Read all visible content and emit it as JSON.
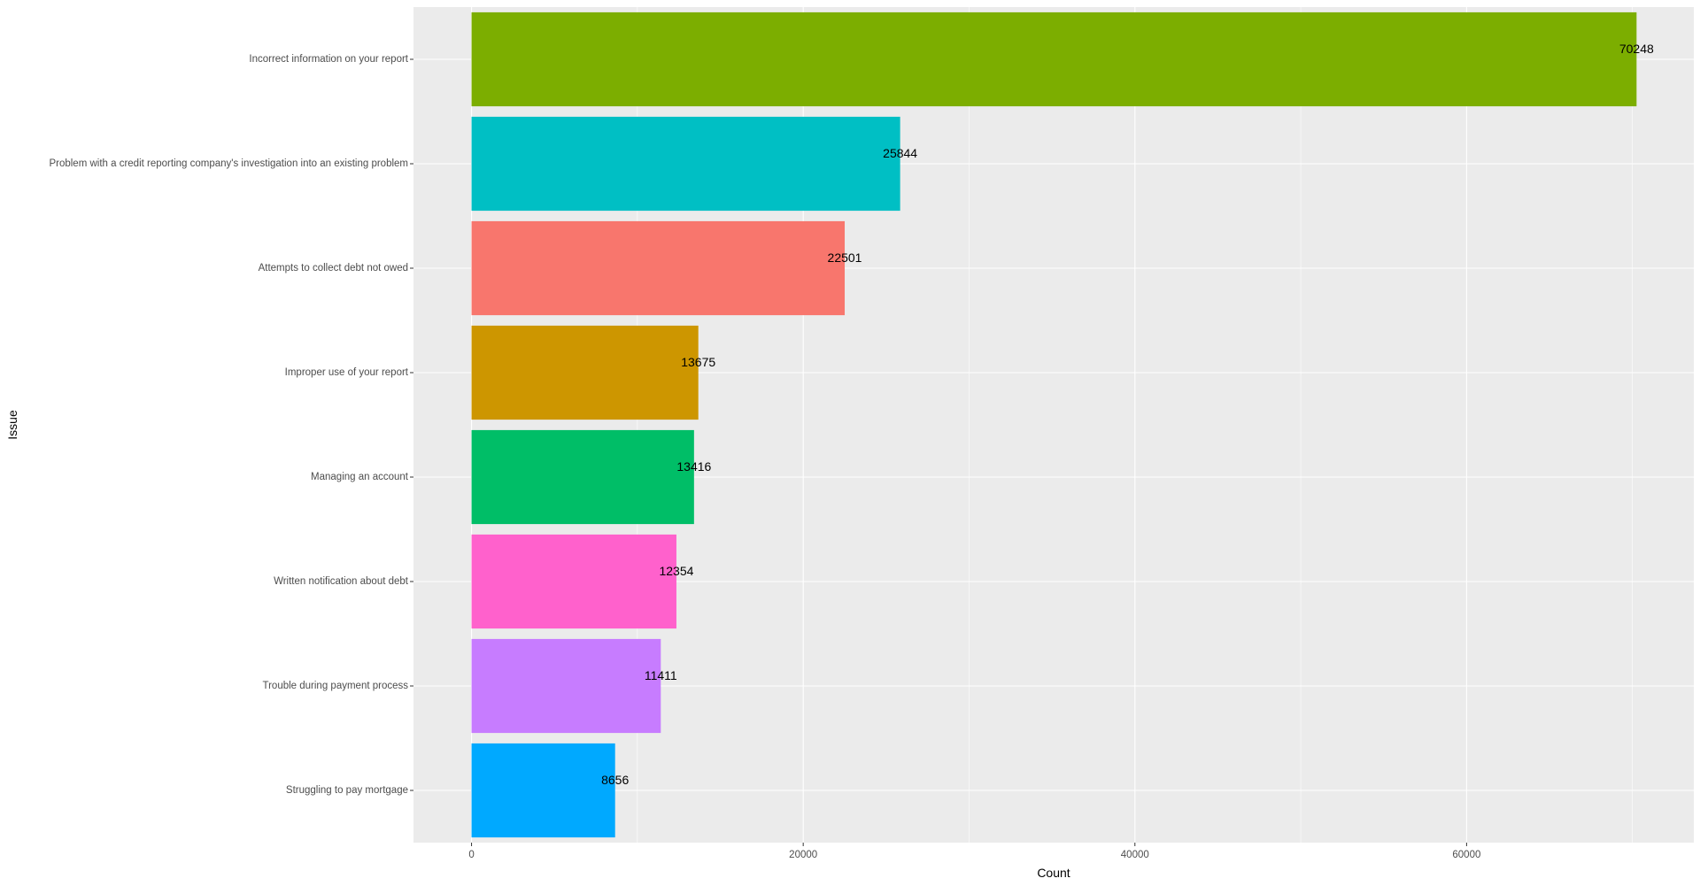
{
  "chart_data": {
    "type": "bar",
    "orientation": "horizontal",
    "xlabel": "Count",
    "ylabel": "Issue",
    "xlim": [
      -3500,
      73700
    ],
    "xticks": [
      0,
      20000,
      40000,
      60000
    ],
    "xtick_labels": [
      "0",
      "20000",
      "40000",
      "60000"
    ],
    "grid": true,
    "legend": "none",
    "categories": [
      "Incorrect information on your report",
      "Problem with a credit reporting company's investigation into an existing problem",
      "Attempts to collect debt not owed",
      "Improper use of your report",
      "Managing an account",
      "Written notification about debt",
      "Trouble during payment process",
      "Struggling to pay mortgage"
    ],
    "values": [
      70248,
      25844,
      22501,
      13675,
      13416,
      12354,
      11411,
      8656
    ],
    "data_labels": [
      "70248",
      "25844",
      "22501",
      "13675",
      "13416",
      "12354",
      "11411",
      "8656"
    ],
    "colors": [
      "#7CAE00",
      "#00BFC4",
      "#F8766D",
      "#CD9600",
      "#00BE67",
      "#FF61CC",
      "#C77CFF",
      "#00A9FF"
    ]
  },
  "style": {
    "panel_background": "#EBEBEB",
    "grid_color": "#FFFFFF",
    "tick_label_color": "#4D4D4D",
    "axis_title_color": "#000000",
    "data_label_color": "#000000"
  }
}
